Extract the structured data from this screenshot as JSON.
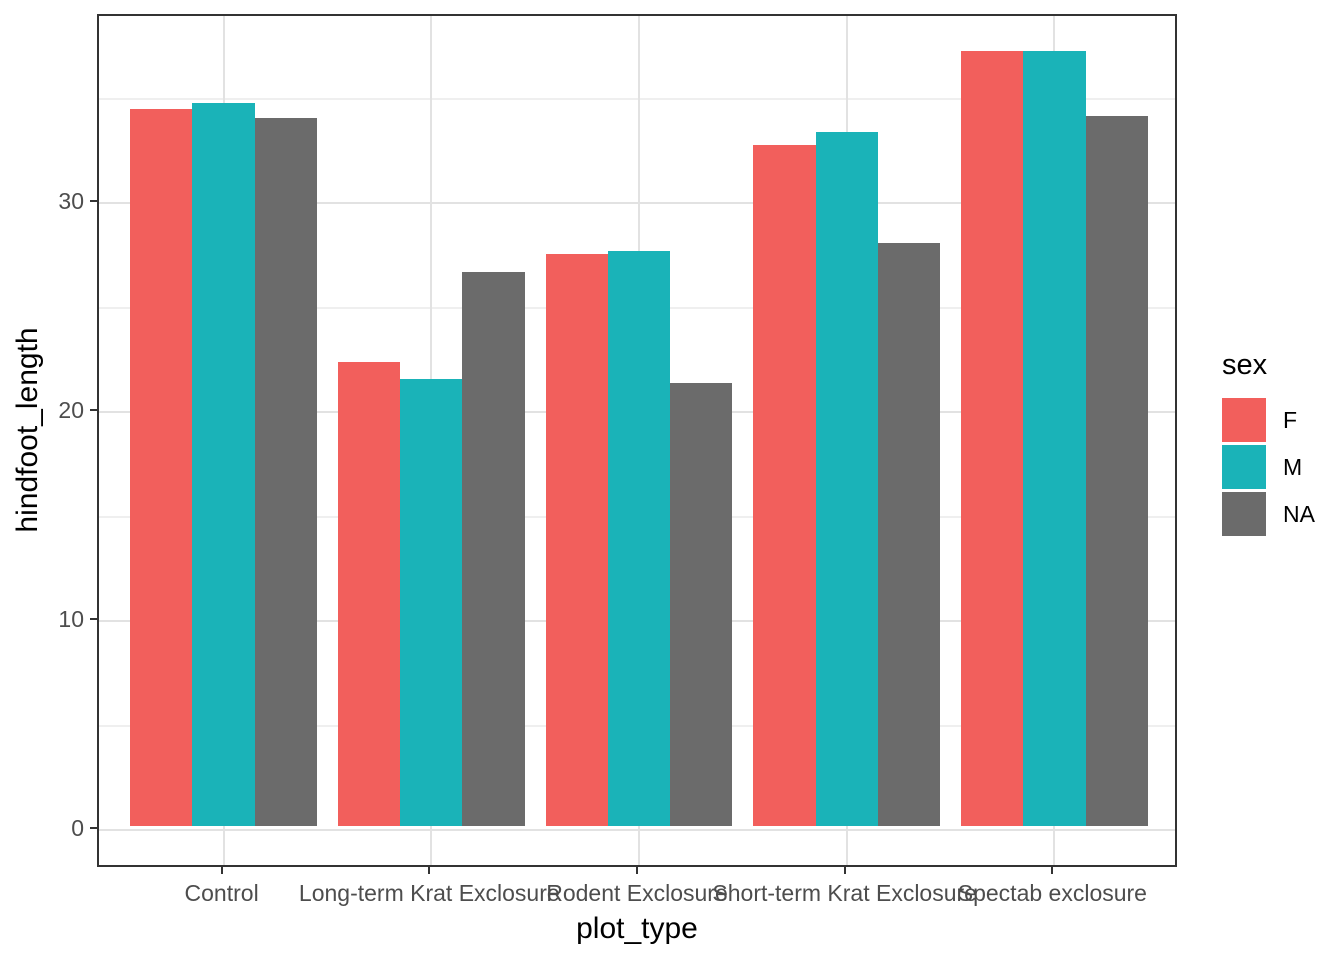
{
  "chart_data": {
    "type": "bar",
    "title": "",
    "xlabel": "plot_type",
    "ylabel": "hindfoot_length",
    "categories": [
      "Control",
      "Long-term Krat Exclosure",
      "Rodent Exclosure",
      "Short-term Krat Exclosure",
      "Spectab exclosure"
    ],
    "series": [
      {
        "name": "F",
        "color": "#f25f5c",
        "values": [
          34.3,
          22.2,
          27.4,
          32.6,
          37.1
        ]
      },
      {
        "name": "M",
        "color": "#1ab3b8",
        "values": [
          34.6,
          21.4,
          27.5,
          33.2,
          37.1
        ]
      },
      {
        "name": "NA",
        "color": "#6b6b6b",
        "values": [
          33.9,
          26.5,
          21.2,
          27.9,
          34.0
        ]
      }
    ],
    "ylim": [
      0,
      40
    ],
    "yticks": [
      0,
      10,
      20,
      30
    ],
    "yminor": [
      5,
      15,
      25,
      35
    ],
    "grid": "on",
    "legend": {
      "title": "sex",
      "position": "right"
    }
  }
}
